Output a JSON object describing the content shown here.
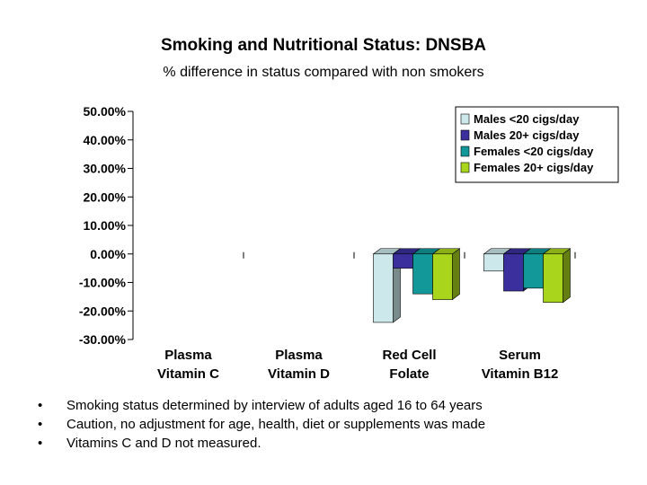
{
  "title": "Smoking and Nutritional Status: DNSBA",
  "subtitle": "% difference in status compared with non smokers",
  "chart_data": {
    "type": "bar",
    "categories": [
      [
        "Plasma",
        "Vitamin C"
      ],
      [
        "Plasma",
        "Vitamin D"
      ],
      [
        "Red Cell",
        "Folate"
      ],
      [
        "Serum",
        "Vitamin B12"
      ]
    ],
    "y_ticks": [
      "50.00%",
      "40.00%",
      "30.00%",
      "20.00%",
      "10.00%",
      "0.00%",
      "-10.00%",
      "-20.00%",
      "-30.00%"
    ],
    "ylim": [
      -30,
      50
    ],
    "xlabel": "",
    "ylabel": "",
    "grid": false,
    "legend_position": "top-right",
    "series": [
      {
        "name": "Males <20 cigs/day",
        "color": "#cce8ea",
        "values": [
          null,
          null,
          -24,
          -6
        ]
      },
      {
        "name": "Males 20+ cigs/day",
        "color": "#3a2f9c",
        "values": [
          null,
          null,
          -5,
          -13
        ]
      },
      {
        "name": "Females <20 cigs/day",
        "color": "#129898",
        "values": [
          null,
          null,
          -14,
          -12
        ]
      },
      {
        "name": "Females 20+ cigs/day",
        "color": "#a9d51c",
        "values": [
          null,
          null,
          -16,
          -17
        ]
      }
    ]
  },
  "notes": [
    "Smoking status determined by interview of adults aged 16 to 64 years",
    "Caution, no adjustment for age, health, diet or supplements was made",
    "Vitamins C and D not measured."
  ],
  "bullet_glyph": "•"
}
